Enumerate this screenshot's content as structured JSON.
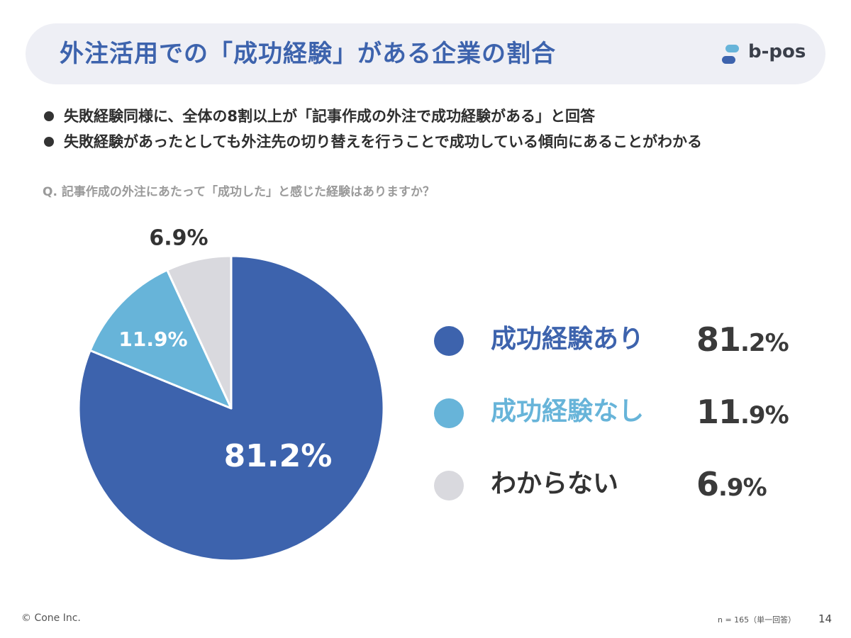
{
  "header": {
    "title": "外注活用での「成功経験」がある企業の割合",
    "logo_text": "b-pos"
  },
  "bullets": [
    "失敗経験同様に、全体の8割以上が「記事作成の外注で成功経験がある」と回答",
    "失敗経験があったとしても外注先の切り替えを行うことで成功している傾向にあることがわかる"
  ],
  "question": "Q. 記事作成の外注にあたって「成功した」と感じた経験はありますか？",
  "legend": [
    {
      "label": "成功経験あり",
      "value_int": "81",
      "value_dec": ".2%",
      "color": "#3d63ad",
      "label_color": "#3d63ad"
    },
    {
      "label": "成功経験なし",
      "value_int": "11",
      "value_dec": ".9%",
      "color": "#67b4d9",
      "label_color": "#67b4d9"
    },
    {
      "label": "わからない",
      "value_int": "6",
      "value_dec": ".9%",
      "color": "#d9d9de",
      "label_color": "#333333"
    }
  ],
  "chart_data": {
    "type": "pie",
    "categories": [
      "成功経験あり",
      "成功経験なし",
      "わからない"
    ],
    "values": [
      81.2,
      11.9,
      6.9
    ],
    "labels": [
      "81.2%",
      "11.9%",
      "6.9%"
    ],
    "colors": [
      "#3d63ad",
      "#67b4d9",
      "#d9d9de"
    ],
    "start": "12 o'clock",
    "direction": "clockwise"
  },
  "footer": {
    "copyright": "© Cone Inc.",
    "sample": "n = 165（単一回答）",
    "page": "14"
  }
}
